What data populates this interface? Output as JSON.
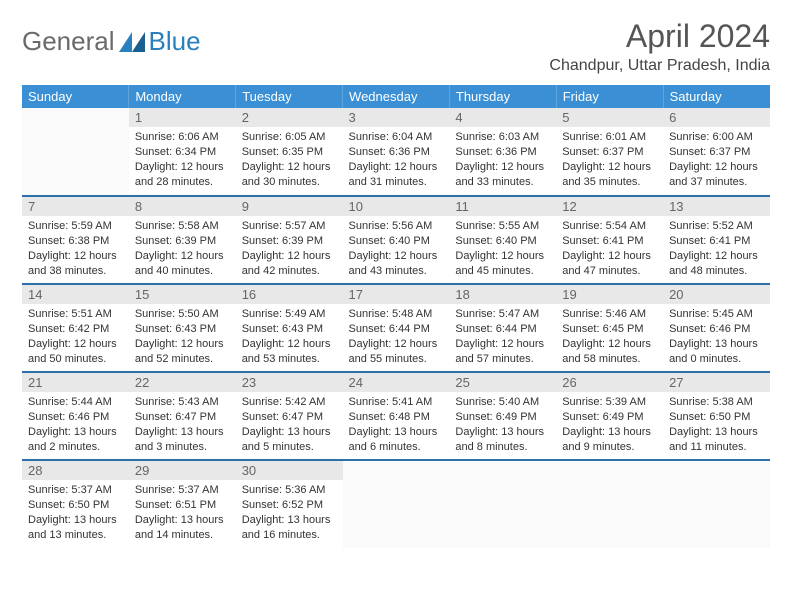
{
  "logo": {
    "general": "General",
    "blue": "Blue"
  },
  "title": "April 2024",
  "location": "Chandpur, Uttar Pradesh, India",
  "header_bg": "#3b8fd4",
  "row_border": "#2d6fa8",
  "daynum_bg": "#e8e8e8",
  "weekdays": [
    "Sunday",
    "Monday",
    "Tuesday",
    "Wednesday",
    "Thursday",
    "Friday",
    "Saturday"
  ],
  "weeks": [
    [
      null,
      {
        "n": "1",
        "sr": "6:06 AM",
        "ss": "6:34 PM",
        "dl": "12 hours and 28 minutes."
      },
      {
        "n": "2",
        "sr": "6:05 AM",
        "ss": "6:35 PM",
        "dl": "12 hours and 30 minutes."
      },
      {
        "n": "3",
        "sr": "6:04 AM",
        "ss": "6:36 PM",
        "dl": "12 hours and 31 minutes."
      },
      {
        "n": "4",
        "sr": "6:03 AM",
        "ss": "6:36 PM",
        "dl": "12 hours and 33 minutes."
      },
      {
        "n": "5",
        "sr": "6:01 AM",
        "ss": "6:37 PM",
        "dl": "12 hours and 35 minutes."
      },
      {
        "n": "6",
        "sr": "6:00 AM",
        "ss": "6:37 PM",
        "dl": "12 hours and 37 minutes."
      }
    ],
    [
      {
        "n": "7",
        "sr": "5:59 AM",
        "ss": "6:38 PM",
        "dl": "12 hours and 38 minutes."
      },
      {
        "n": "8",
        "sr": "5:58 AM",
        "ss": "6:39 PM",
        "dl": "12 hours and 40 minutes."
      },
      {
        "n": "9",
        "sr": "5:57 AM",
        "ss": "6:39 PM",
        "dl": "12 hours and 42 minutes."
      },
      {
        "n": "10",
        "sr": "5:56 AM",
        "ss": "6:40 PM",
        "dl": "12 hours and 43 minutes."
      },
      {
        "n": "11",
        "sr": "5:55 AM",
        "ss": "6:40 PM",
        "dl": "12 hours and 45 minutes."
      },
      {
        "n": "12",
        "sr": "5:54 AM",
        "ss": "6:41 PM",
        "dl": "12 hours and 47 minutes."
      },
      {
        "n": "13",
        "sr": "5:52 AM",
        "ss": "6:41 PM",
        "dl": "12 hours and 48 minutes."
      }
    ],
    [
      {
        "n": "14",
        "sr": "5:51 AM",
        "ss": "6:42 PM",
        "dl": "12 hours and 50 minutes."
      },
      {
        "n": "15",
        "sr": "5:50 AM",
        "ss": "6:43 PM",
        "dl": "12 hours and 52 minutes."
      },
      {
        "n": "16",
        "sr": "5:49 AM",
        "ss": "6:43 PM",
        "dl": "12 hours and 53 minutes."
      },
      {
        "n": "17",
        "sr": "5:48 AM",
        "ss": "6:44 PM",
        "dl": "12 hours and 55 minutes."
      },
      {
        "n": "18",
        "sr": "5:47 AM",
        "ss": "6:44 PM",
        "dl": "12 hours and 57 minutes."
      },
      {
        "n": "19",
        "sr": "5:46 AM",
        "ss": "6:45 PM",
        "dl": "12 hours and 58 minutes."
      },
      {
        "n": "20",
        "sr": "5:45 AM",
        "ss": "6:46 PM",
        "dl": "13 hours and 0 minutes."
      }
    ],
    [
      {
        "n": "21",
        "sr": "5:44 AM",
        "ss": "6:46 PM",
        "dl": "13 hours and 2 minutes."
      },
      {
        "n": "22",
        "sr": "5:43 AM",
        "ss": "6:47 PM",
        "dl": "13 hours and 3 minutes."
      },
      {
        "n": "23",
        "sr": "5:42 AM",
        "ss": "6:47 PM",
        "dl": "13 hours and 5 minutes."
      },
      {
        "n": "24",
        "sr": "5:41 AM",
        "ss": "6:48 PM",
        "dl": "13 hours and 6 minutes."
      },
      {
        "n": "25",
        "sr": "5:40 AM",
        "ss": "6:49 PM",
        "dl": "13 hours and 8 minutes."
      },
      {
        "n": "26",
        "sr": "5:39 AM",
        "ss": "6:49 PM",
        "dl": "13 hours and 9 minutes."
      },
      {
        "n": "27",
        "sr": "5:38 AM",
        "ss": "6:50 PM",
        "dl": "13 hours and 11 minutes."
      }
    ],
    [
      {
        "n": "28",
        "sr": "5:37 AM",
        "ss": "6:50 PM",
        "dl": "13 hours and 13 minutes."
      },
      {
        "n": "29",
        "sr": "5:37 AM",
        "ss": "6:51 PM",
        "dl": "13 hours and 14 minutes."
      },
      {
        "n": "30",
        "sr": "5:36 AM",
        "ss": "6:52 PM",
        "dl": "13 hours and 16 minutes."
      },
      null,
      null,
      null,
      null
    ]
  ],
  "labels": {
    "sunrise": "Sunrise:",
    "sunset": "Sunset:",
    "daylight": "Daylight:"
  }
}
